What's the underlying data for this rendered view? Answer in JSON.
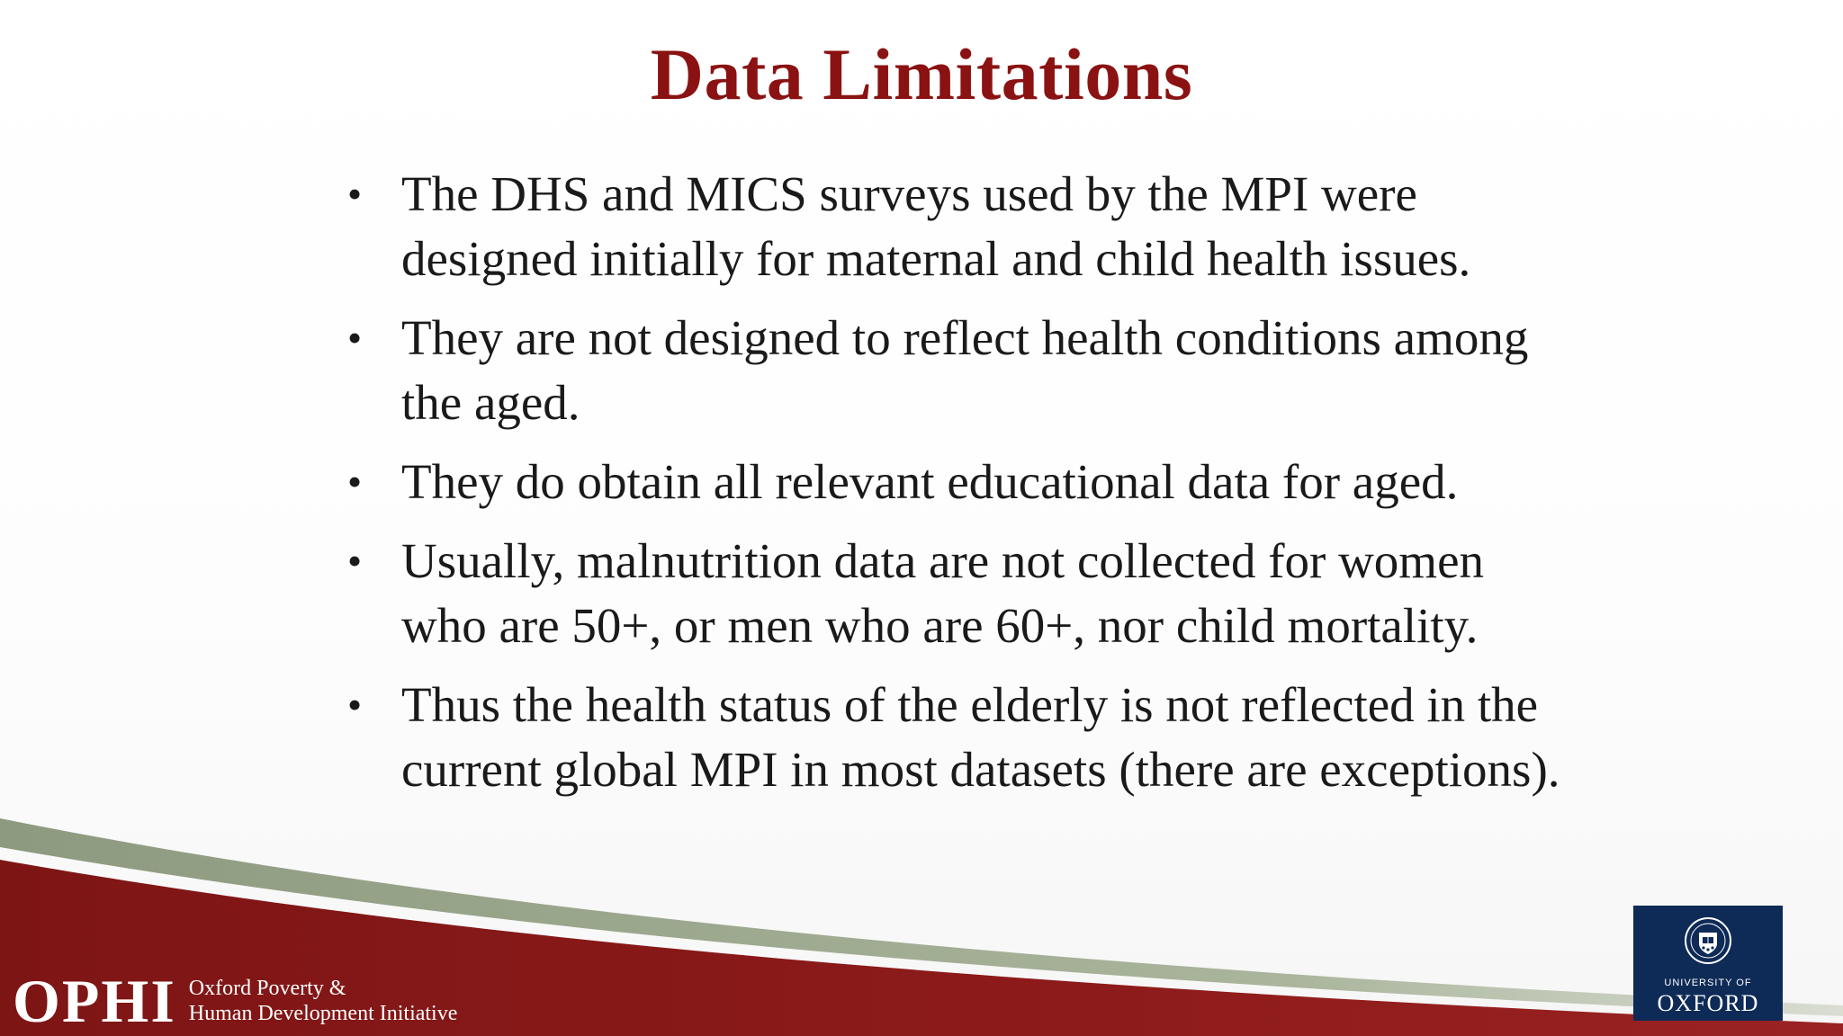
{
  "slide": {
    "title": "Data Limitations",
    "bullet_symbol": "•",
    "bullets": [
      "The DHS and MICS surveys used by the MPI were designed initially for maternal and child health issues.",
      "They are not designed to reflect health conditions among the aged.",
      "They do obtain all relevant educational data for aged.",
      "Usually, malnutrition data are not collected for women who are 50+, or men who are 60+, nor child mortality.",
      "Thus the health status of the elderly is not reflected in the current global MPI in most datasets (there are exceptions)."
    ]
  },
  "footer": {
    "ophi_logo": {
      "acronym": "OPHI",
      "line1": "Oxford Poverty &",
      "line2": "Human Development Initiative"
    },
    "oxford_logo": {
      "line1": "UNIVERSITY OF",
      "line2": "OXFORD"
    }
  },
  "colors": {
    "title": "#8b1212",
    "band_red": "#8b1a1a",
    "band_sage": "#9aa58a",
    "oxford_blue": "#0e2a56"
  }
}
